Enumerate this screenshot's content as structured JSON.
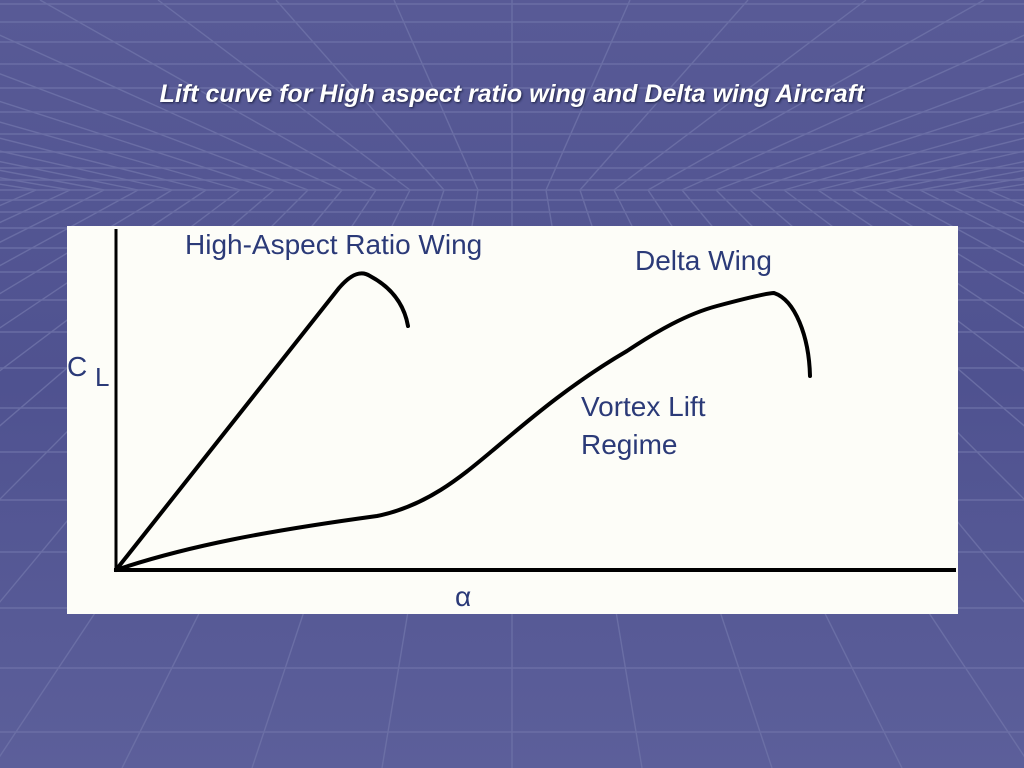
{
  "slide": {
    "title": "Lift curve for High aspect ratio wing and Delta wing Aircraft",
    "background_color": "#5a5d97",
    "panel_color": "#fdfdf8"
  },
  "chart_data": {
    "type": "line",
    "title": "",
    "xlabel": "α",
    "ylabel": {
      "main": "C",
      "subscript": "L"
    },
    "ticks": "none",
    "grid": false,
    "series": [
      {
        "name": "High-Aspect Ratio Wing",
        "color": "#000000"
      },
      {
        "name": "Delta Wing",
        "color": "#000000"
      }
    ],
    "annotations": [
      {
        "line1": "Vortex Lift",
        "line2": "Regime"
      }
    ],
    "text_color": "#2b3a78"
  }
}
